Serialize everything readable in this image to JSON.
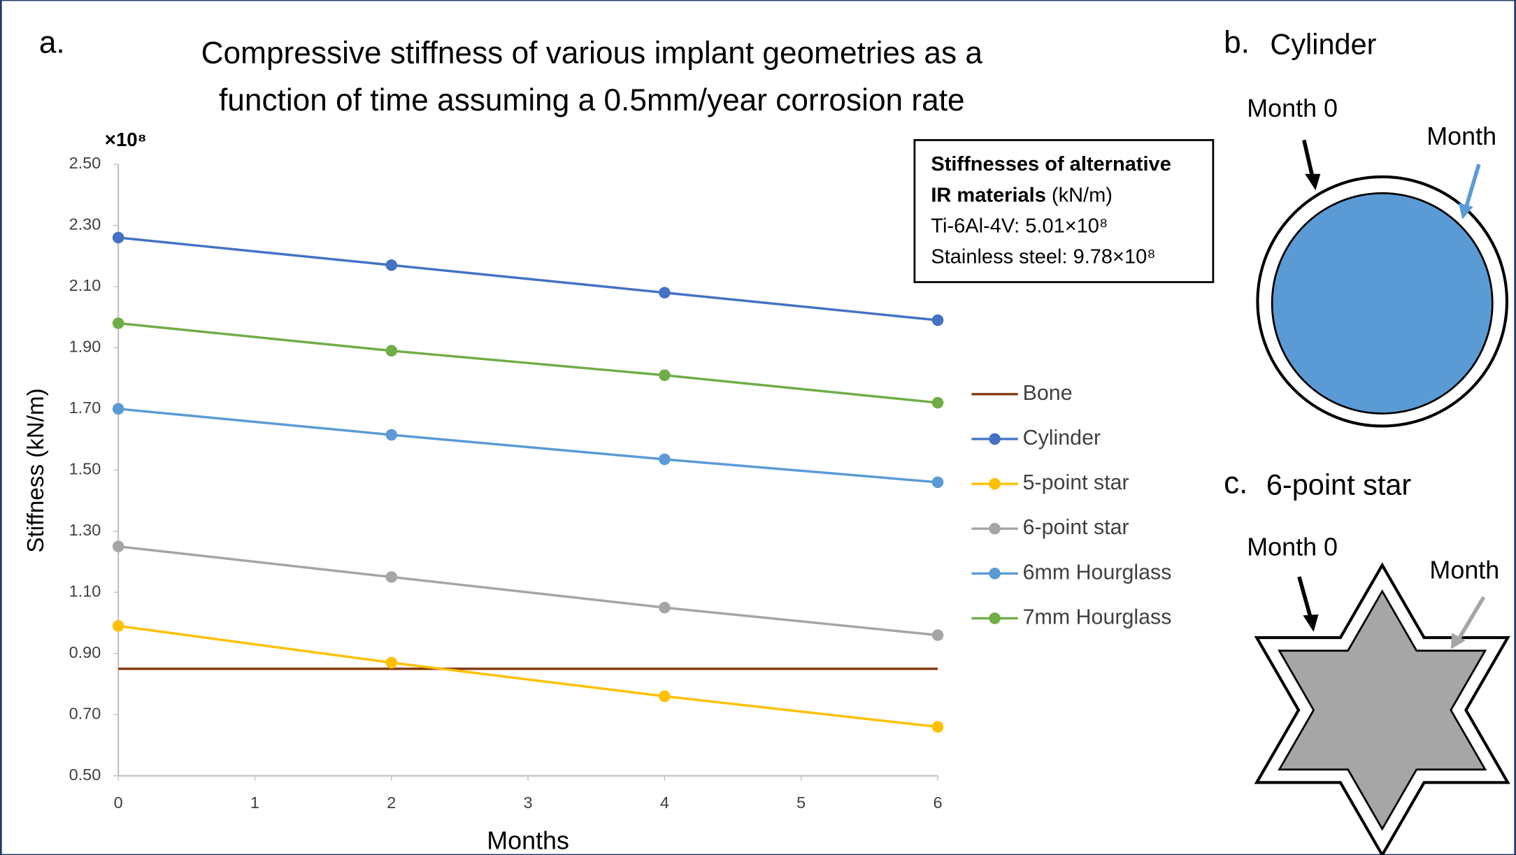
{
  "panel_label": "a.",
  "chart_data": {
    "type": "line",
    "title_lines": [
      "Compressive stiffness of various implant geometries as a",
      "function of time assuming a 0.5mm/year corrosion rate"
    ],
    "y_multiplier": "×10⁸",
    "ylabel": "Stiffness (kN/m)",
    "xlabel": "Months",
    "x": [
      0,
      2,
      4,
      6
    ],
    "xlim": [
      0,
      6
    ],
    "xticks": [
      0,
      1,
      2,
      3,
      4,
      5,
      6
    ],
    "ylim": [
      0.5,
      2.5
    ],
    "yticks": [
      {
        "value": 0.5,
        "label": "0.50"
      },
      {
        "value": 0.7,
        "label": "0.70"
      },
      {
        "value": 0.9,
        "label": "0.90"
      },
      {
        "value": 1.1,
        "label": "1.10"
      },
      {
        "value": 1.3,
        "label": "1.30"
      },
      {
        "value": 1.5,
        "label": "1.50"
      },
      {
        "value": 1.7,
        "label": "1.70"
      },
      {
        "value": 1.9,
        "label": "1.90"
      },
      {
        "value": 2.1,
        "label": "2.10"
      },
      {
        "value": 2.3,
        "label": "2.30"
      },
      {
        "value": 2.5,
        "label": "2.50"
      }
    ],
    "series": [
      {
        "name": "Bone",
        "color": "#843c0c",
        "marker": false,
        "values": [
          0.85,
          0.85,
          0.85,
          0.85
        ]
      },
      {
        "name": "Cylinder",
        "color": "#4472c4",
        "marker": true,
        "values": [
          2.26,
          2.17,
          2.08,
          1.99
        ]
      },
      {
        "name": "5-point star",
        "color": "#ffc000",
        "marker": true,
        "values": [
          0.99,
          0.87,
          0.76,
          0.66
        ]
      },
      {
        "name": "6-point star",
        "color": "#a5a5a5",
        "marker": true,
        "values": [
          1.25,
          1.15,
          1.05,
          0.96
        ]
      },
      {
        "name": "6mm Hourglass",
        "color": "#5b9bd5",
        "marker": true,
        "values": [
          1.7,
          1.615,
          1.535,
          1.46
        ]
      },
      {
        "name": "7mm Hourglass",
        "color": "#70ad47",
        "marker": true,
        "values": [
          1.98,
          1.89,
          1.81,
          1.72
        ]
      }
    ],
    "annotation": {
      "heading_lines": [
        "Stiffnesses of alternative",
        "IR materials"
      ],
      "unit": "(kN/m)",
      "items": [
        "Ti-6Al-4V: 5.01×10⁸",
        "Stainless steel: 9.78×10⁸"
      ]
    }
  },
  "diagrams": [
    {
      "label": "b.",
      "title": "Cylinder",
      "arrow_labels": [
        "Month 0",
        "Month"
      ]
    },
    {
      "label": "c.",
      "title": "6-point star",
      "arrow_labels": [
        "Month 0",
        "Month"
      ]
    }
  ]
}
